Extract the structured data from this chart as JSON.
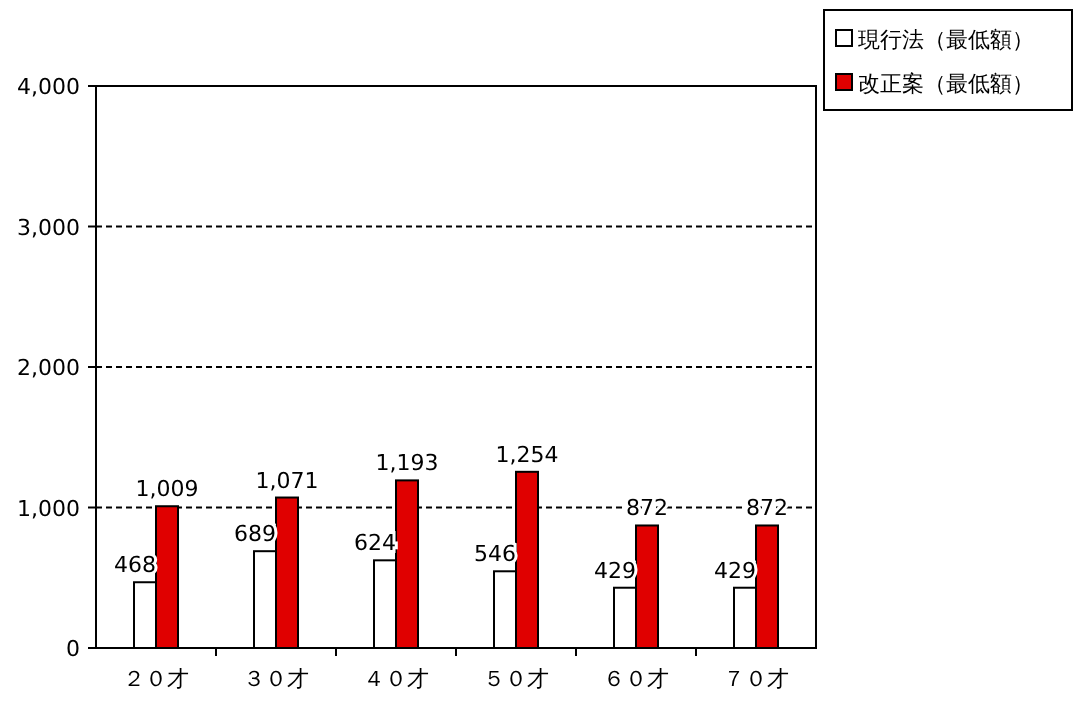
{
  "chart_data": {
    "type": "bar",
    "categories": [
      "２０才",
      "３０才",
      "４０才",
      "５０才",
      "６０才",
      "７０才"
    ],
    "series": [
      {
        "name": "現行法（最低額）",
        "color": "#ffffff",
        "values": [
          468,
          689,
          624,
          546,
          429,
          429
        ],
        "value_labels": [
          "468",
          "689",
          "624",
          "546",
          "429",
          "429"
        ]
      },
      {
        "name": "改正案（最低額）",
        "color": "#e00000",
        "values": [
          1009,
          1071,
          1193,
          1254,
          872,
          872
        ],
        "value_labels": [
          "1,009",
          "1,071",
          "1,193",
          "1,254",
          "872",
          "872"
        ]
      }
    ],
    "ylim": [
      0,
      4000
    ],
    "yticks": [
      0,
      {
        "value": 1000,
        "label": "1,000"
      },
      {
        "value": 2000,
        "label": "2,000"
      },
      {
        "value": 3000,
        "label": "3,000"
      },
      {
        "value": 4000,
        "label": "4,000"
      }
    ],
    "grid": "y",
    "legend": "top right"
  }
}
